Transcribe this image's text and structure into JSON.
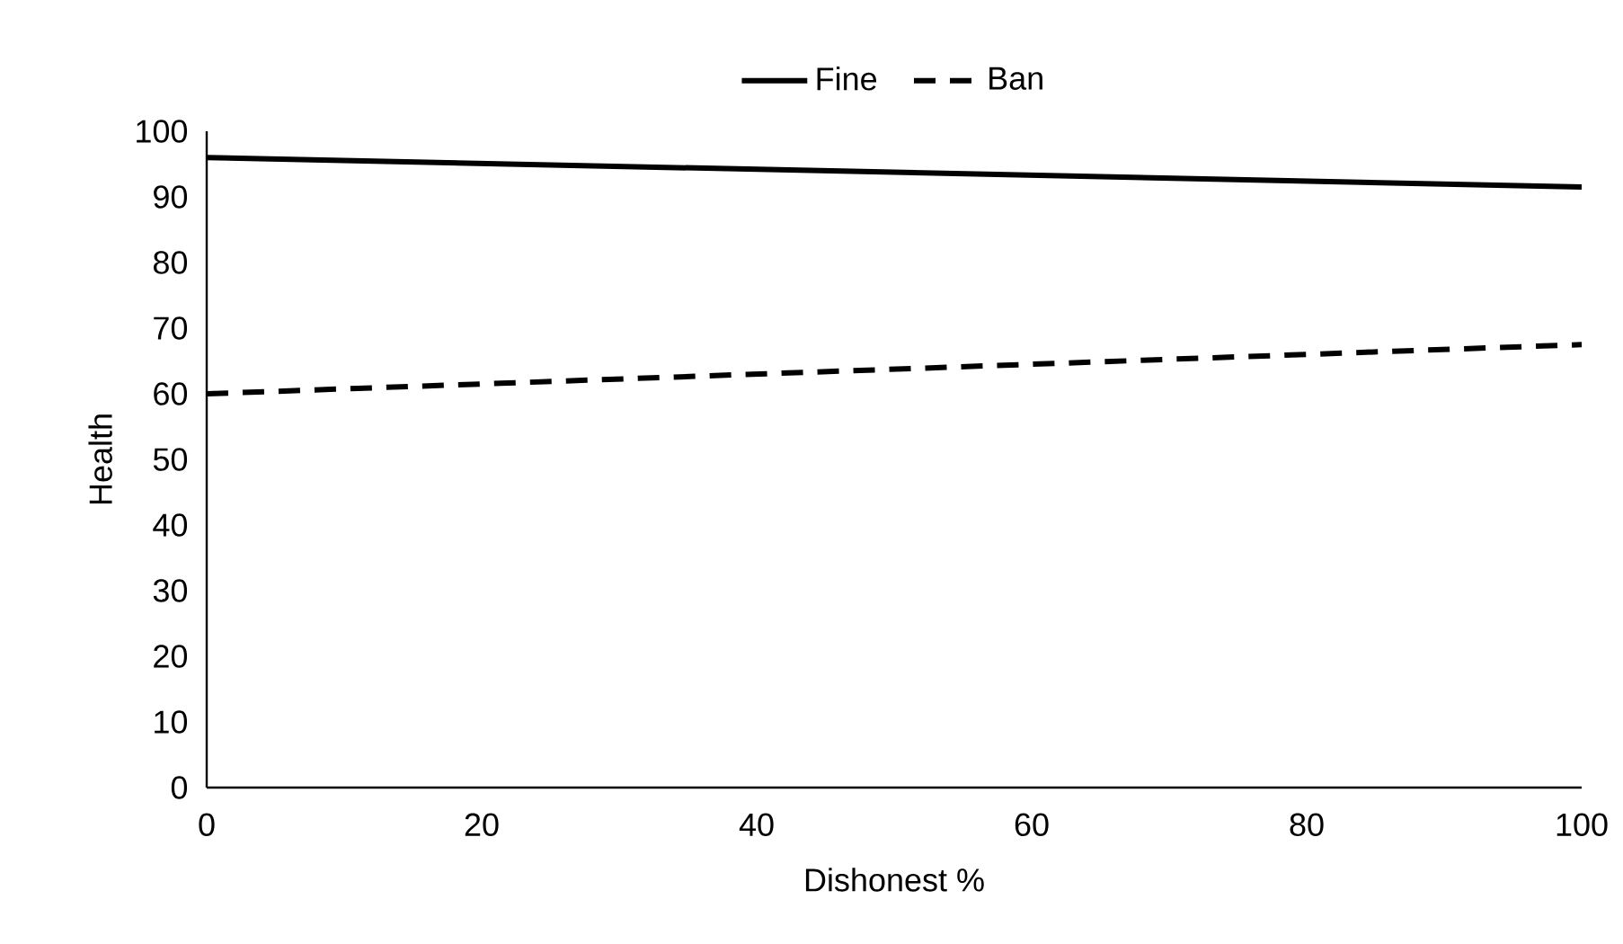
{
  "chart_data": {
    "type": "line",
    "xlabel": "Dishonest %",
    "ylabel": "Health",
    "x": [
      0,
      100
    ],
    "series": [
      {
        "name": "Fine",
        "color": "#000000",
        "line_style": "solid",
        "values": [
          96,
          91.5
        ]
      },
      {
        "name": "Ban",
        "color": "#000000",
        "line_style": "dashed",
        "values": [
          60,
          67.5
        ]
      }
    ],
    "xlim": [
      0,
      100
    ],
    "xticks": [
      0,
      20,
      40,
      60,
      80,
      100
    ],
    "ylim": [
      0,
      100
    ],
    "yticks": [
      0,
      10,
      20,
      30,
      40,
      50,
      60,
      70,
      80,
      90,
      100
    ],
    "grid": false,
    "legend": "top",
    "marker": "none"
  }
}
